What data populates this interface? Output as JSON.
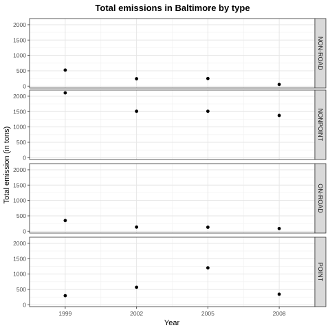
{
  "chart_data": {
    "type": "scatter",
    "title": "Total emissions in Baltimore by type",
    "xlabel": "Year",
    "ylabel": "Total emission (in tons)",
    "x": [
      1999,
      2002,
      2005,
      2008
    ],
    "xticks": [
      "1999",
      "2002",
      "2005",
      "2008"
    ],
    "xlim": [
      1997.5,
      2009.5
    ],
    "ylim": [
      -60,
      2200
    ],
    "yticks": [
      "0",
      "500",
      "1000",
      "1500",
      "2000"
    ],
    "grid": true,
    "facet_layout": "stacked panels, strip labels on the right",
    "point_color": "#000000",
    "strip_color": "#d9d9d9",
    "panels": [
      {
        "name": "NON-ROAD",
        "values": [
          523,
          241,
          248,
          55
        ]
      },
      {
        "name": "NONPOINT",
        "values": [
          2108,
          1510,
          1510,
          1373
        ]
      },
      {
        "name": "ON-ROAD",
        "values": [
          347,
          134,
          130,
          88
        ]
      },
      {
        "name": "POINT",
        "values": [
          296,
          570,
          1202,
          345
        ]
      }
    ]
  }
}
